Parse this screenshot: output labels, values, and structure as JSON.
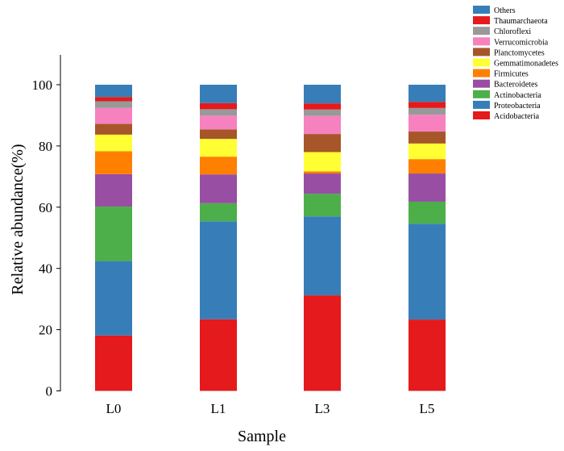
{
  "chart_data": {
    "type": "bar",
    "stacked": true,
    "title": "",
    "xlabel": "Sample",
    "ylabel": "Relative abundance(%)",
    "ylim": [
      0,
      110
    ],
    "yticks": [
      0,
      20,
      40,
      60,
      80,
      100
    ],
    "grid": false,
    "legend_position": "top-right",
    "categories": [
      "L0",
      "L1",
      "L3",
      "L5"
    ],
    "series": [
      {
        "name": "Acidobacteria",
        "color": "#e41a1c",
        "values": [
          18.1,
          23.4,
          31.2,
          23.3
        ]
      },
      {
        "name": "Proteobacteria",
        "color": "#377eb8",
        "values": [
          24.3,
          32.0,
          25.8,
          31.3
        ]
      },
      {
        "name": "Actinobacteria",
        "color": "#4daf4a",
        "values": [
          17.8,
          5.9,
          7.4,
          7.2
        ]
      },
      {
        "name": "Bacteroidetes",
        "color": "#984ea3",
        "values": [
          10.6,
          9.4,
          6.6,
          9.2
        ]
      },
      {
        "name": "Firmicutes",
        "color": "#ff7f00",
        "values": [
          7.5,
          5.8,
          0.7,
          4.7
        ]
      },
      {
        "name": "Gemmatimonadetes",
        "color": "#ffff33",
        "values": [
          5.4,
          5.8,
          6.3,
          5.1
        ]
      },
      {
        "name": "Planctomycetes",
        "color": "#a65628",
        "values": [
          3.5,
          3.1,
          5.9,
          3.9
        ]
      },
      {
        "name": "Verrucomicrobia",
        "color": "#f781bf",
        "values": [
          5.2,
          4.5,
          5.9,
          5.5
        ]
      },
      {
        "name": "Chloroflexi",
        "color": "#999999",
        "values": [
          2.2,
          2.1,
          2.1,
          2.2
        ]
      },
      {
        "name": "Thaumarchaeota",
        "color": "#e41a1c",
        "values": [
          1.4,
          2.0,
          2.0,
          2.0
        ]
      },
      {
        "name": "Others",
        "color": "#377eb8",
        "values": [
          4.0,
          6.0,
          6.1,
          5.6
        ]
      }
    ]
  }
}
